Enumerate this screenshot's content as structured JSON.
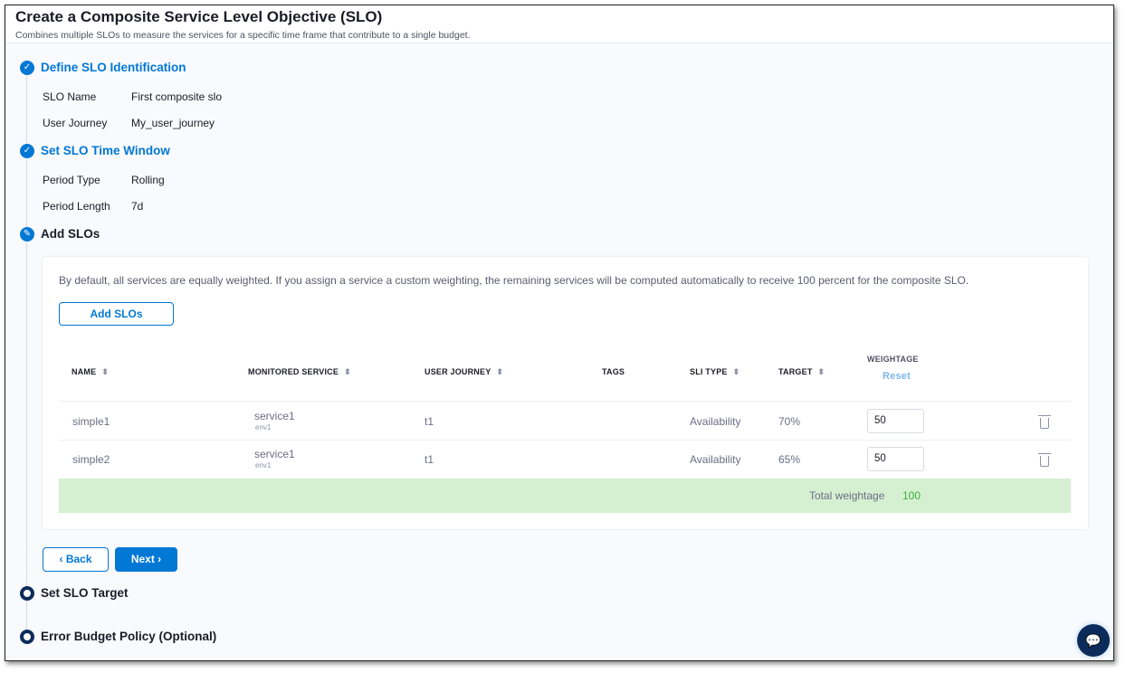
{
  "header": {
    "title": "Create a Composite Service Level Objective (SLO)",
    "subtitle": "Combines multiple SLOs to measure the services for a specific time frame that contribute to a single budget."
  },
  "steps": {
    "identification": {
      "label": "Define SLO Identification",
      "status": "complete",
      "fields": [
        {
          "label": "SLO Name",
          "value": "First composite slo"
        },
        {
          "label": "User Journey",
          "value": "My_user_journey"
        }
      ]
    },
    "time_window": {
      "label": "Set SLO Time Window",
      "status": "complete",
      "fields": [
        {
          "label": "Period Type",
          "value": "Rolling"
        },
        {
          "label": "Period Length",
          "value": "7d"
        }
      ]
    },
    "add_slos": {
      "label": "Add SLOs",
      "status": "editing"
    },
    "target": {
      "label": "Set SLO Target",
      "status": "pending"
    },
    "error_budget": {
      "label": "Error Budget Policy (Optional)",
      "status": "pending"
    }
  },
  "add_slos": {
    "description": "By default, all services are equally weighted. If you assign a service a custom weighting, the remaining services will be computed automatically to receive 100 percent for the composite SLO.",
    "add_button": "Add SLOs",
    "columns": {
      "name": "NAME",
      "monitored_service": "MONITORED SERVICE",
      "user_journey": "USER JOURNEY",
      "tags": "TAGS",
      "sli_type": "SLI TYPE",
      "target": "TARGET",
      "weightage": "WEIGHTAGE",
      "reset": "Reset"
    },
    "rows": [
      {
        "name": "simple1",
        "service": "service1",
        "env": "env1",
        "user_journey": "t1",
        "tags": "",
        "sli_type": "Availability",
        "target": "70%",
        "weightage": "50"
      },
      {
        "name": "simple2",
        "service": "service1",
        "env": "env1",
        "user_journey": "t1",
        "tags": "",
        "sli_type": "Availability",
        "target": "65%",
        "weightage": "50"
      }
    ],
    "total_label": "Total weightage",
    "total_value": "100"
  },
  "nav": {
    "back": "Back",
    "next": "Next"
  },
  "colors": {
    "accent": "#0278d5",
    "total_bg": "#d5f0d1",
    "total_value": "#3dae3d",
    "nav_dark": "#0b2c5a"
  }
}
